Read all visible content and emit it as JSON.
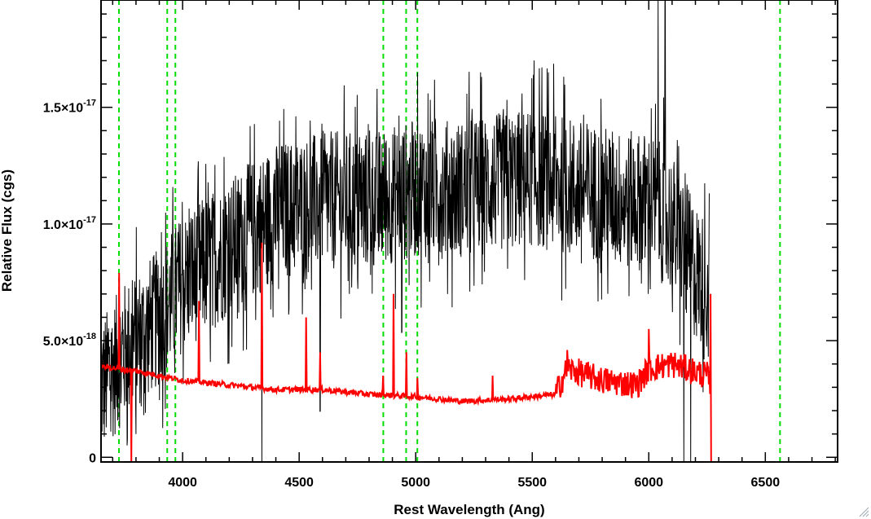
{
  "chart_data": {
    "type": "line",
    "xlabel": "Rest Wavelength (Ang)",
    "ylabel": "Relative Flux (cgs)",
    "xlim": [
      3650,
      6810
    ],
    "ylim": [
      -2e-19,
      1.96e-17
    ],
    "grid": false,
    "x_ticks": [
      {
        "value": 4000,
        "label": "4000"
      },
      {
        "value": 4500,
        "label": "4500"
      },
      {
        "value": 5000,
        "label": "5000"
      },
      {
        "value": 5500,
        "label": "5500"
      },
      {
        "value": 6000,
        "label": "6000"
      },
      {
        "value": 6500,
        "label": "6500"
      }
    ],
    "y_ticks": [
      {
        "value": 0,
        "mantissa": "0",
        "exponent": ""
      },
      {
        "value": 5e-18,
        "mantissa": "5.0×10",
        "exponent": "-18"
      },
      {
        "value": 1e-17,
        "mantissa": "1.0×10",
        "exponent": "-17"
      },
      {
        "value": 1.5e-17,
        "mantissa": "1.5×10",
        "exponent": "-17"
      }
    ],
    "reference_lines": {
      "color": "#00dd00",
      "style": "dashed",
      "x": [
        3727,
        3934,
        3969,
        4861,
        4959,
        5007,
        6563
      ]
    },
    "series": [
      {
        "color": "#000000",
        "amplitude": 3e-18,
        "continuum": [
          [
            3650,
            3e-18
          ],
          [
            3750,
            4.5e-18
          ],
          [
            3900,
            6e-18
          ],
          [
            4000,
            7.5e-18
          ],
          [
            4200,
            9e-18
          ],
          [
            4400,
            1.05e-17
          ],
          [
            4600,
            1.1e-17
          ],
          [
            4800,
            1.1e-17
          ],
          [
            5000,
            1.15e-17
          ],
          [
            5200,
            1.15e-17
          ],
          [
            5500,
            1.2e-17
          ],
          [
            5700,
            1.15e-17
          ],
          [
            5900,
            1.1e-17
          ],
          [
            6000,
            1.1e-17
          ],
          [
            6100,
            1e-17
          ],
          [
            6200,
            8e-18
          ],
          [
            6260,
            7e-18
          ]
        ],
        "features": [
          [
            3800,
            -4e-18
          ],
          [
            3840,
            -3.5e-18
          ],
          [
            4340,
            1e-17
          ],
          [
            4340,
            -1.05e-17
          ],
          [
            4590,
            -9e-18
          ],
          [
            4940,
            -6e-18
          ],
          [
            6040,
            9e-18
          ],
          [
            6070,
            1e-17
          ],
          [
            6150,
            -9.5e-18
          ],
          [
            6180,
            -9e-18
          ]
        ]
      },
      {
        "color": "#ff0000",
        "continuum": [
          [
            3650,
            3.9e-18
          ],
          [
            3800,
            3.7e-18
          ],
          [
            4000,
            3.3e-18
          ],
          [
            4200,
            3.1e-18
          ],
          [
            4400,
            2.9e-18
          ],
          [
            4600,
            2.9e-18
          ],
          [
            4800,
            2.7e-18
          ],
          [
            5000,
            2.6e-18
          ],
          [
            5200,
            2.4e-18
          ],
          [
            5400,
            2.5e-18
          ],
          [
            5600,
            2.7e-18
          ],
          [
            5650,
            3.8e-18
          ],
          [
            5800,
            3.3e-18
          ],
          [
            5950,
            3.1e-18
          ],
          [
            6000,
            3.8e-18
          ],
          [
            6100,
            4e-18
          ],
          [
            6250,
            3.5e-18
          ],
          [
            6262,
            3.3e-18
          ],
          [
            6265,
            -2e-19
          ],
          [
            6810,
            -2e-19
          ]
        ],
        "lines": [
          [
            3727,
            7.9e-18
          ],
          [
            3780,
            -4e-18
          ],
          [
            4070,
            6.7e-18
          ],
          [
            4340,
            9.2e-18
          ],
          [
            4530,
            6e-18
          ],
          [
            4590,
            4.5e-18
          ],
          [
            4861,
            3.5e-18
          ],
          [
            4905,
            7e-18
          ],
          [
            4959,
            4.5e-18
          ],
          [
            5007,
            3.4e-18
          ],
          [
            5330,
            3.5e-18
          ],
          [
            5650,
            4.6e-18
          ],
          [
            6000,
            5.5e-18
          ],
          [
            6265,
            7e-18
          ]
        ]
      }
    ]
  }
}
